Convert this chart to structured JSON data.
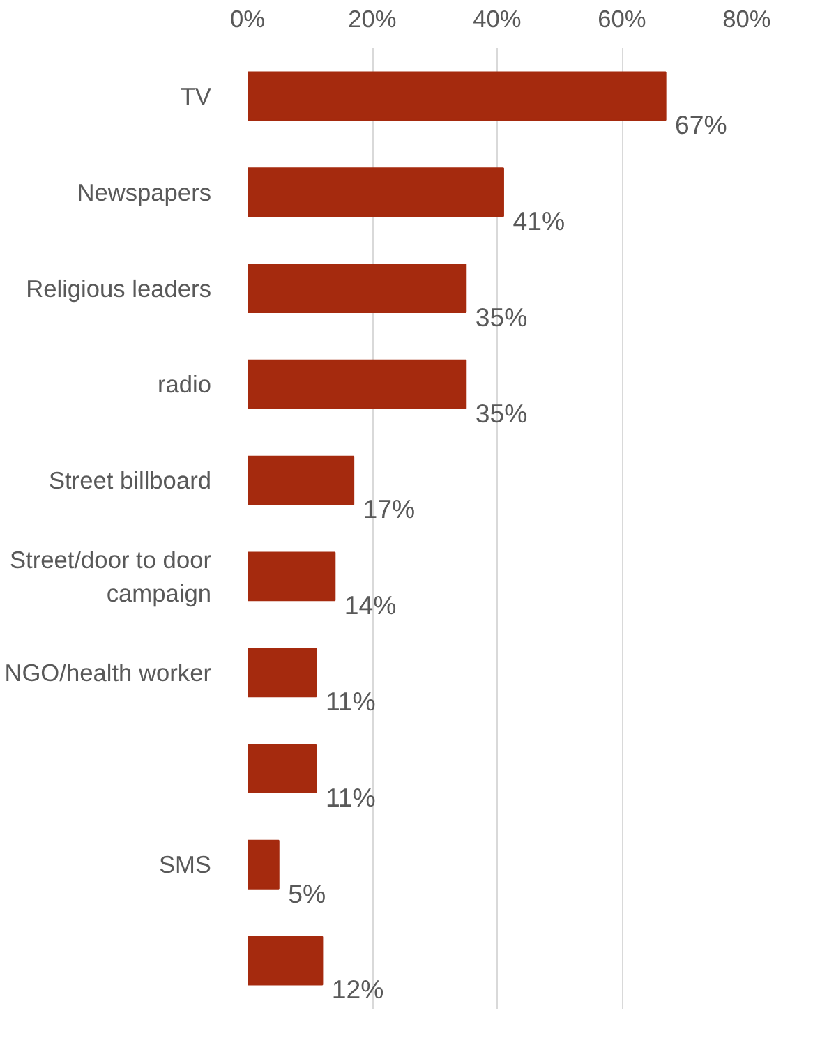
{
  "chart_data": {
    "type": "bar",
    "orientation": "horizontal",
    "categories": [
      "TV",
      "Newspapers",
      "Religious leaders",
      "radio",
      "Street billboard",
      "Street/door to door campaign",
      "NGO/health worker",
      null,
      "SMS",
      null
    ],
    "values": [
      67,
      41,
      35,
      35,
      17,
      14,
      11,
      11,
      5,
      12
    ],
    "value_labels": [
      "67%",
      "41%",
      "35%",
      "35%",
      "17%",
      "14%",
      "11%",
      "11%",
      "5%",
      "12%"
    ],
    "color": "#a52a0e",
    "xlim": [
      0,
      80
    ],
    "xticks": [
      {
        "value": 0,
        "label": "0%"
      },
      {
        "value": 20,
        "label": "20%"
      },
      {
        "value": 40,
        "label": "40%"
      },
      {
        "value": 60,
        "label": "60%"
      },
      {
        "value": 80,
        "label": "80%"
      }
    ],
    "grid": "x"
  }
}
